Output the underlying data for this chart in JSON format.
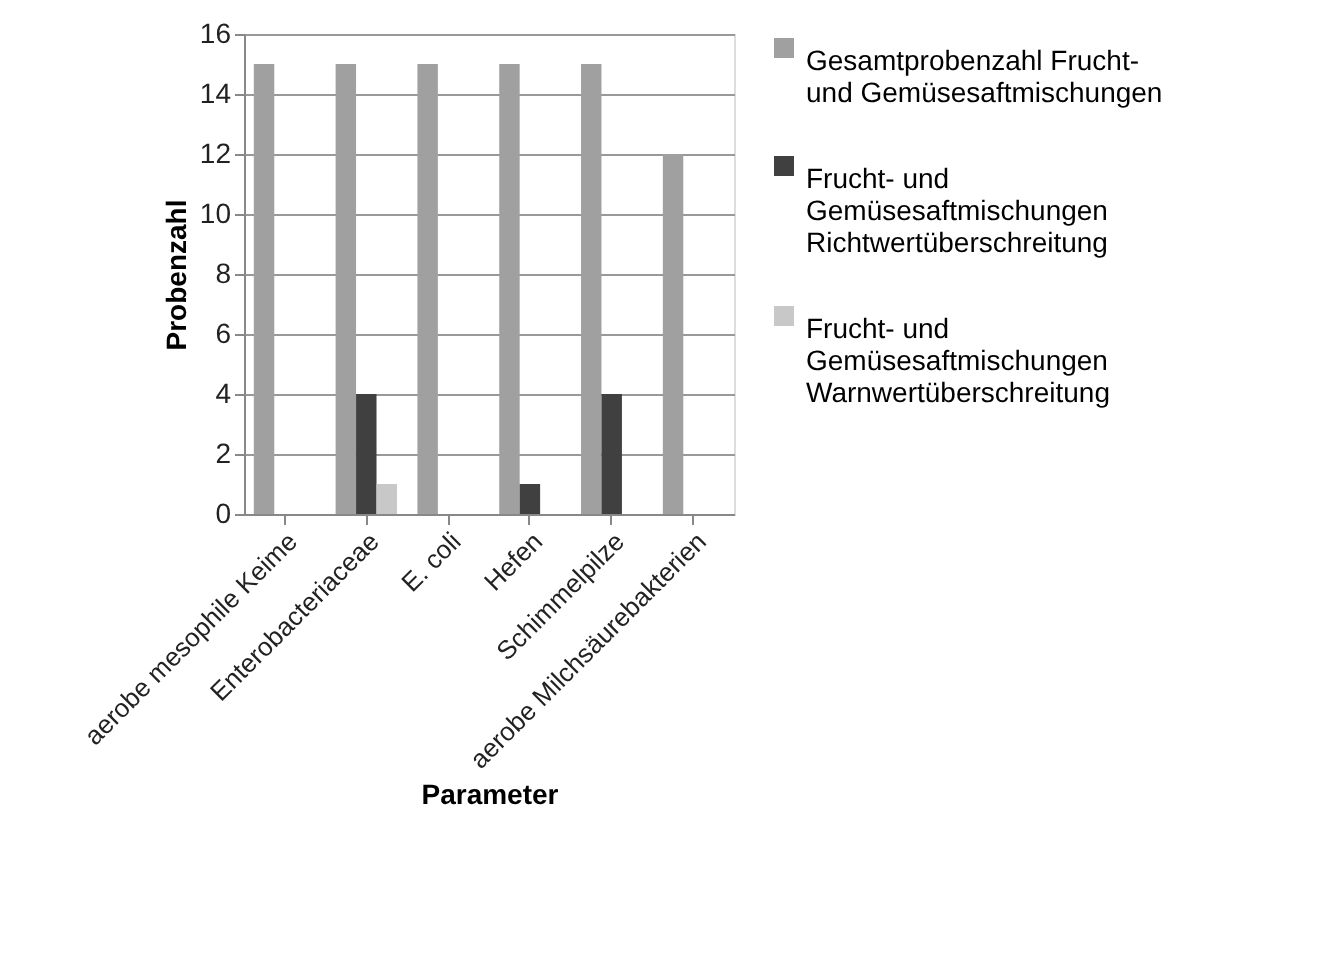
{
  "chart_data": {
    "type": "bar",
    "xlabel": "Parameter",
    "ylabel": "Probenzahl",
    "categories": [
      "aerobe mesophile Keime",
      "Enterobacteriaceae",
      "E. coli",
      "Hefen",
      "Schimmelpilze",
      "aerobe Milchsäurebakterien"
    ],
    "series": [
      {
        "name": "Gesamtprobenzahl Frucht- und Gemüsesaftmischungen",
        "color": "#a0a0a0",
        "values": [
          15,
          15,
          15,
          15,
          15,
          12
        ]
      },
      {
        "name": "Frucht- und Gemüsesaftmischungen Richtwertüberschreitung",
        "color": "#404040",
        "values": [
          0,
          4,
          0,
          1,
          4,
          0
        ]
      },
      {
        "name": "Frucht- und Gemüsesaftmischungen Warnwertüberschreitung",
        "color": "#c8c8c8",
        "values": [
          0,
          1,
          0,
          0,
          0,
          0
        ]
      }
    ],
    "ylim": [
      0,
      16
    ],
    "yticks": [
      0,
      2,
      4,
      6,
      8,
      10,
      12,
      14,
      16
    ],
    "grid": "y",
    "legend": "right"
  }
}
